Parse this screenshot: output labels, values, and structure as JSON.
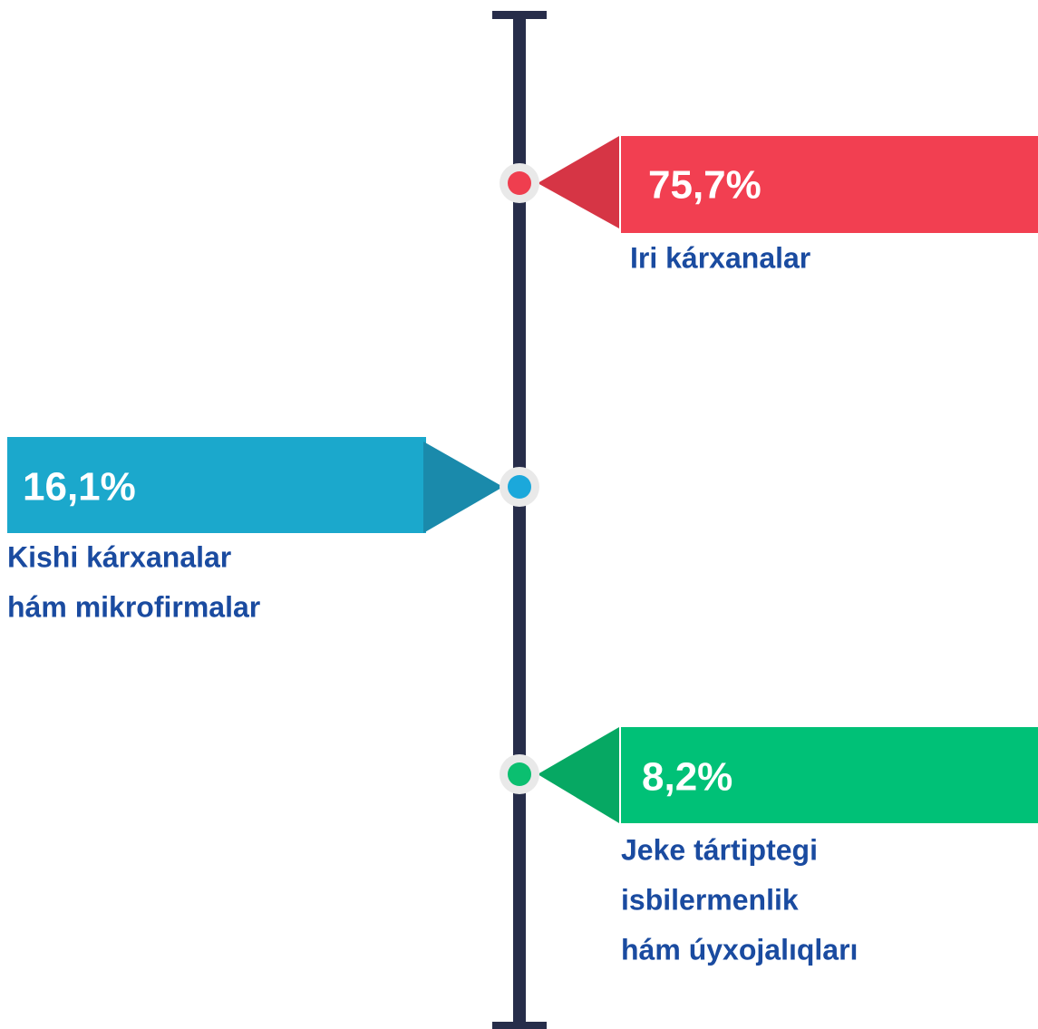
{
  "items": [
    {
      "value": "75,7%",
      "label": [
        "Iri kárxanalar"
      ]
    },
    {
      "value": "16,1%",
      "label": [
        "Kishi kárxanalar",
        "hám mikrofirmalar"
      ]
    },
    {
      "value": "8,2%",
      "label": [
        "Jeke tártiptegi",
        "isbilermenlik",
        "hám úyxojalıqları"
      ]
    }
  ]
}
